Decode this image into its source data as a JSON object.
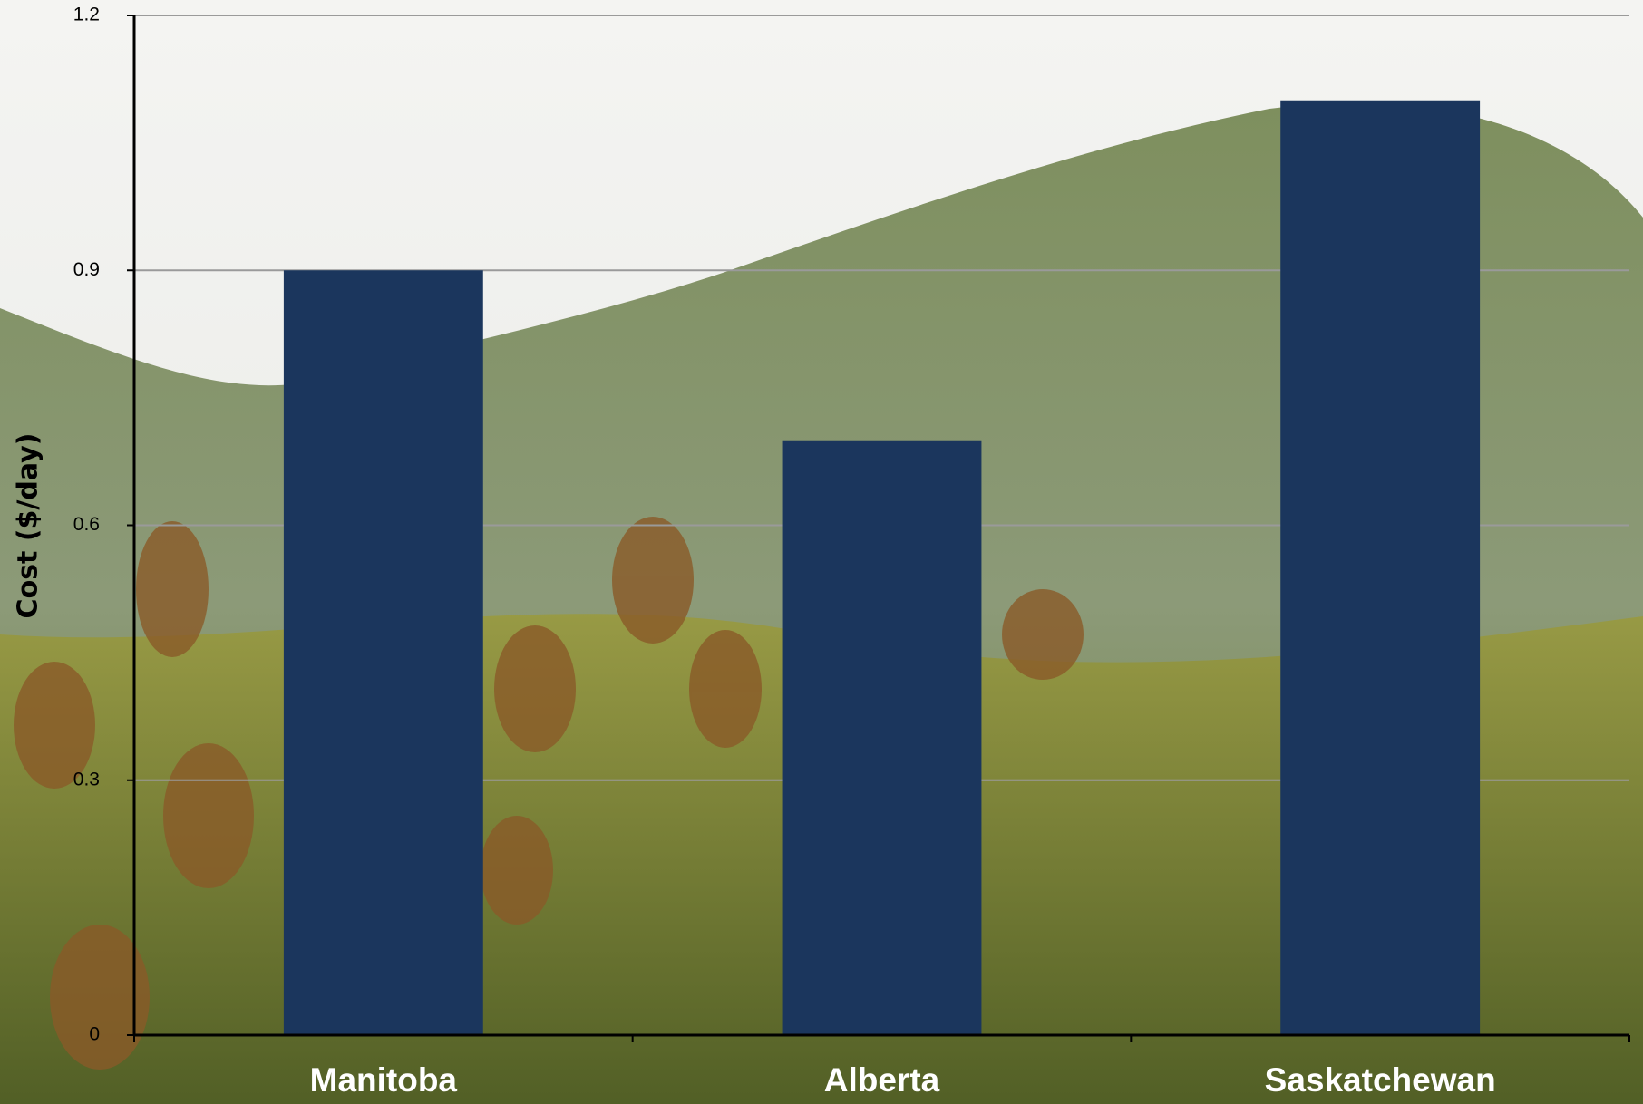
{
  "chart_data": {
    "type": "bar",
    "y_label": "Cost ($/day)",
    "categories": [
      "Manitoba",
      "Alberta",
      "Saskatchewan"
    ],
    "values": [
      0.9,
      0.7,
      1.1
    ],
    "color": "#1b365d",
    "ylim": [
      0,
      1.2
    ],
    "yticks": [
      0,
      0.3,
      0.6,
      0.9,
      1.2
    ],
    "grid": true
  }
}
